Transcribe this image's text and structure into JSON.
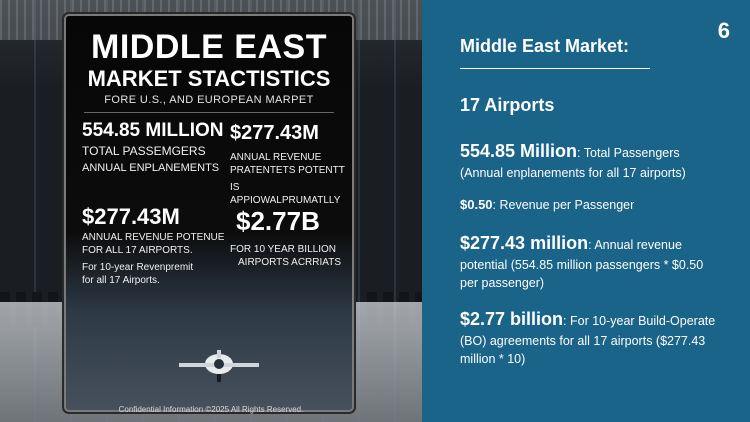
{
  "poster": {
    "title_line1": "MIDDLE EAST",
    "title_line2": "MARKET STACTISTICS",
    "subtitle": "FORE U.S., AND EUROPEAN MARPET",
    "block1_big": "554.85 MILLION",
    "block1_line1": "TOTAL PASSEMGERS",
    "block1_line2": "ANNUAL ENPLANEMENTS",
    "block2_big": "$277.43M",
    "block2_line1": "ANNUAL REVENUE",
    "block2_line2": "PRATENTETS POTENTT",
    "block2_line3": "IS APPIOWALPRUMATLLY",
    "block3_big": "$277.43M",
    "block3_line1": "ANNUAL REVENUE POTENUE",
    "block3_line2": "FOR ALL 17 AIRPORTS.",
    "block3_line3": "For 10-year Revenpremit",
    "block3_line4": "for all 17 Airports.",
    "block4_big": "$2.77B",
    "block4_line1": "FOR 10 YEAR BILLION",
    "block4_line2": "AIRPORTS ACRRIATS"
  },
  "footer": "Confidential Information ©2025 All Rights Reserved.",
  "slide": {
    "page_number": "6",
    "title": "Middle East Market:",
    "airports": "17 Airports",
    "items": [
      {
        "highlight": "554.85 Million",
        "text": ": Total Passengers (Annual enplanements for all 17 airports)"
      },
      {
        "highlight": "$0.50",
        "text": ": Revenue per Passenger"
      },
      {
        "highlight": "$277.43 million",
        "text": ": Annual revenue potential (554.85 million passengers * $0.50 per passenger)"
      },
      {
        "highlight": "$2.77 billion",
        "text": ": For 10-year Build-Operate (BO) agreements for all 17 airports ($277.43 million * 10)"
      }
    ]
  }
}
